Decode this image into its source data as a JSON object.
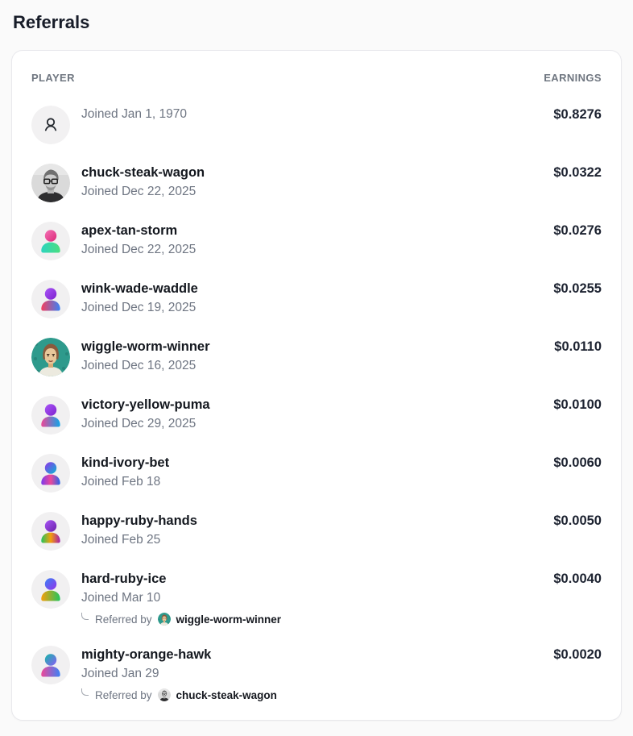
{
  "page": {
    "title": "Referrals"
  },
  "table": {
    "headers": {
      "player": "PLAYER",
      "earnings": "EARNINGS"
    },
    "referred_by_label": "Referred by",
    "rows": [
      {
        "name": "",
        "joined": "Joined Jan 1, 1970",
        "earnings": "$0.8276",
        "avatar": {
          "type": "anonymous-user",
          "bg": "#f2f1f2",
          "stroke": "#24292f"
        }
      },
      {
        "name": "chuck-steak-wagon",
        "joined": "Joined Dec 22, 2025",
        "earnings": "$0.0322",
        "avatar": {
          "type": "photo-man-glasses"
        }
      },
      {
        "name": "apex-tan-storm",
        "joined": "Joined Dec 22, 2025",
        "earnings": "$0.0276",
        "avatar": {
          "type": "gradient-person",
          "bg": "#f1f0f1",
          "head": [
            "#f472b6",
            "#db2777"
          ],
          "body": [
            "#2dd4bf",
            "#4ade80"
          ]
        }
      },
      {
        "name": "wink-wade-waddle",
        "joined": "Joined Dec 19, 2025",
        "earnings": "$0.0255",
        "avatar": {
          "type": "gradient-person",
          "bg": "#f1f0f1",
          "head": [
            "#a855f7",
            "#7e22ce"
          ],
          "body": [
            "#f43f5e",
            "#3b82f6"
          ]
        }
      },
      {
        "name": "wiggle-worm-winner",
        "joined": "Joined Dec 16, 2025",
        "earnings": "$0.0110",
        "avatar": {
          "type": "illustrated-face"
        }
      },
      {
        "name": "victory-yellow-puma",
        "joined": "Joined Dec 29, 2025",
        "earnings": "$0.0100",
        "avatar": {
          "type": "gradient-person",
          "bg": "#f1f0f1",
          "head": [
            "#a855f7",
            "#7e22ce"
          ],
          "body": [
            "#ec4899",
            "#0ea5e9"
          ]
        }
      },
      {
        "name": "kind-ivory-bet",
        "joined": "Joined Feb 18",
        "earnings": "$0.0060",
        "avatar": {
          "type": "gradient-person",
          "bg": "#f1f0f1",
          "head": [
            "#9333ea",
            "#06b6d4"
          ],
          "body": [
            "#7c3aed",
            "#ec4899",
            "#2563eb"
          ]
        }
      },
      {
        "name": "happy-ruby-hands",
        "joined": "Joined Feb 25",
        "earnings": "$0.0050",
        "avatar": {
          "type": "gradient-person",
          "bg": "#f1f0f1",
          "head": [
            "#a855f7",
            "#6b21a8"
          ],
          "body": [
            "#22c55e",
            "#f59e0b",
            "#a21caf"
          ]
        }
      },
      {
        "name": "hard-ruby-ice",
        "joined": "Joined Mar 10",
        "earnings": "$0.0040",
        "avatar": {
          "type": "gradient-person",
          "bg": "#f1f0f1",
          "head": [
            "#3b82f6",
            "#9333ea"
          ],
          "body": [
            "#f59e0b",
            "#22c55e"
          ]
        },
        "referred_by": {
          "name": "wiggle-worm-winner",
          "avatar": {
            "type": "illustrated-face"
          }
        }
      },
      {
        "name": "mighty-orange-hawk",
        "joined": "Joined Jan 29",
        "earnings": "$0.0020",
        "avatar": {
          "type": "gradient-person",
          "bg": "#f1f0f1",
          "head": [
            "#14b8a6",
            "#8b5cf6"
          ],
          "body": [
            "#ec4899",
            "#3b82f6"
          ]
        },
        "referred_by": {
          "name": "chuck-steak-wagon",
          "avatar": {
            "type": "photo-man-glasses"
          }
        }
      }
    ]
  },
  "colors": {
    "page_bg": "#fafafa",
    "card_bg": "#ffffff",
    "card_border": "#e8e8ec",
    "heading_text": "#171c28",
    "primary_text": "#14181f",
    "secondary_text": "#6e7582"
  }
}
